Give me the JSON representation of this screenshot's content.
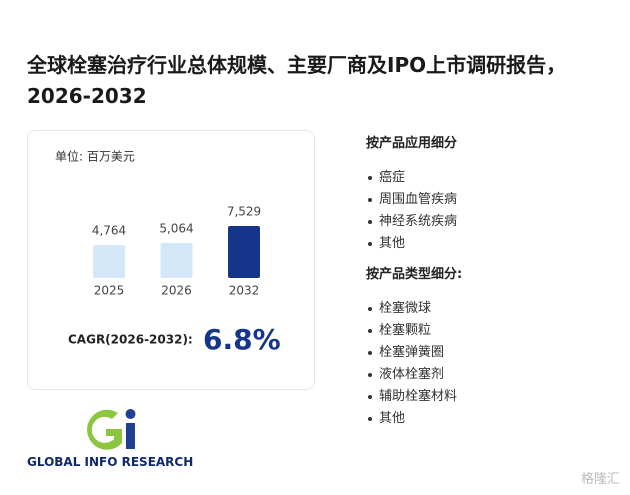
{
  "title": "全球栓塞治疗行业总体规模、主要厂商及IPO上市调研报告，2026-2032",
  "chart_data": {
    "type": "bar",
    "unit": "单位: 百万美元",
    "categories": [
      "2025",
      "2026",
      "2032"
    ],
    "values": [
      4764,
      5064,
      7529
    ],
    "value_labels": [
      "4,764",
      "5,064",
      "7,529"
    ],
    "colors": [
      "#d4e7f9",
      "#d4e7f9",
      "#15358a"
    ]
  },
  "cagr": {
    "label": "CAGR(2026-2032):",
    "value": "6.8%"
  },
  "application": {
    "heading": "按产品应用细分",
    "items": [
      "癌症",
      "周围血管疾病",
      "神经系统疾病",
      "其他"
    ]
  },
  "product_type": {
    "heading": "按产品类型细分:",
    "items": [
      "栓塞微球",
      "栓塞颗粒",
      "栓塞弹簧圈",
      "液体栓塞剂",
      "辅助栓塞材料",
      "其他"
    ]
  },
  "logo": "GLOBAL INFO RESEARCH",
  "watermark": "格隆汇"
}
